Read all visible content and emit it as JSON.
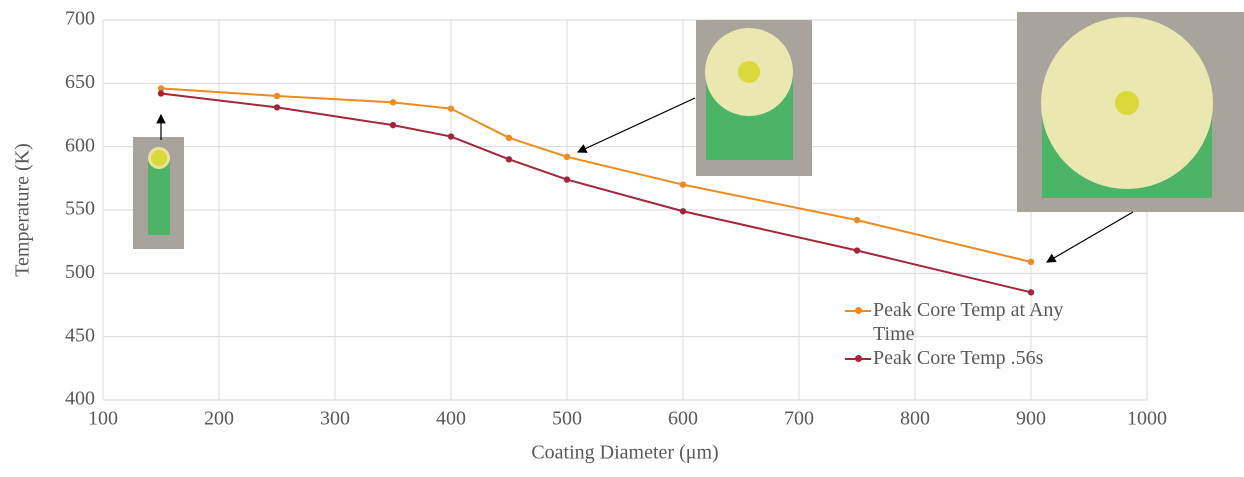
{
  "chart_data": {
    "type": "line",
    "x_label": "Coating Diameter (μm)",
    "y_label": "Temperature (K)",
    "x": [
      150,
      250,
      350,
      400,
      450,
      500,
      600,
      750,
      900
    ],
    "series": [
      {
        "name": "Peak Core Temp at Any Time",
        "color": "#ed8b1c",
        "values": [
          646,
          640,
          635,
          630,
          607,
          592,
          570,
          542,
          509
        ]
      },
      {
        "name": "Peak Core Temp .56s",
        "color": "#a5263a",
        "values": [
          642,
          631,
          617,
          608,
          590,
          574,
          549,
          518,
          485
        ]
      }
    ],
    "xlim": [
      100,
      1000
    ],
    "xticks": [
      100,
      200,
      300,
      400,
      500,
      600,
      700,
      800,
      900,
      1000
    ],
    "ylim": [
      400,
      700
    ],
    "yticks": [
      400,
      450,
      500,
      550,
      600,
      650,
      700
    ],
    "grid": true,
    "legend": "lower right"
  }
}
